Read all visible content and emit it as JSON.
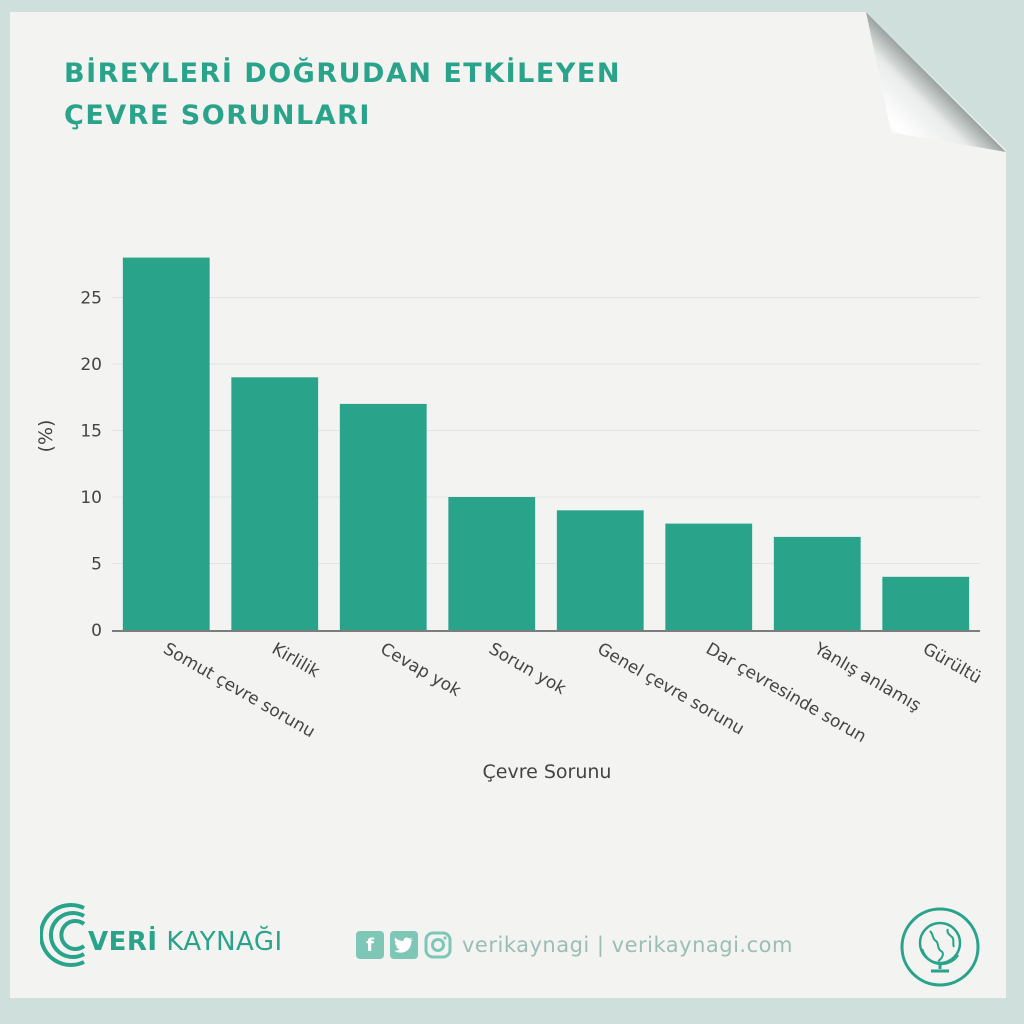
{
  "title_lines": [
    "BİREYLERİ DOĞRUDAN ETKİLEYEN",
    "ÇEVRE SORUNLARI"
  ],
  "chart_data": {
    "type": "bar",
    "categories": [
      "Somut çevre sorunu",
      "Kirlilik",
      "Cevap yok",
      "Sorun yok",
      "Genel çevre sorunu",
      "Dar çevresinde sorun",
      "Yanlış anlamış",
      "Gürültü"
    ],
    "values": [
      28,
      19,
      17,
      10,
      9,
      8,
      7,
      4
    ],
    "xlabel": "Çevre Sorunu",
    "ylabel": "(%)",
    "yticks": [
      0,
      5,
      10,
      15,
      20,
      25
    ],
    "ylim": [
      0,
      28
    ],
    "grid": true,
    "bar_color": "#2aa38b"
  },
  "footer": {
    "logo_bold": "VERİ",
    "logo_rest": " KAYNAĞI",
    "social_text": "verikaynagi | verikaynagi.com",
    "icons": [
      "facebook-icon",
      "twitter-icon",
      "instagram-icon",
      "globe-icon"
    ]
  },
  "colors": {
    "accent": "#2aa38b",
    "background": "#cfe0dc",
    "paper": "#f3f3f2"
  }
}
